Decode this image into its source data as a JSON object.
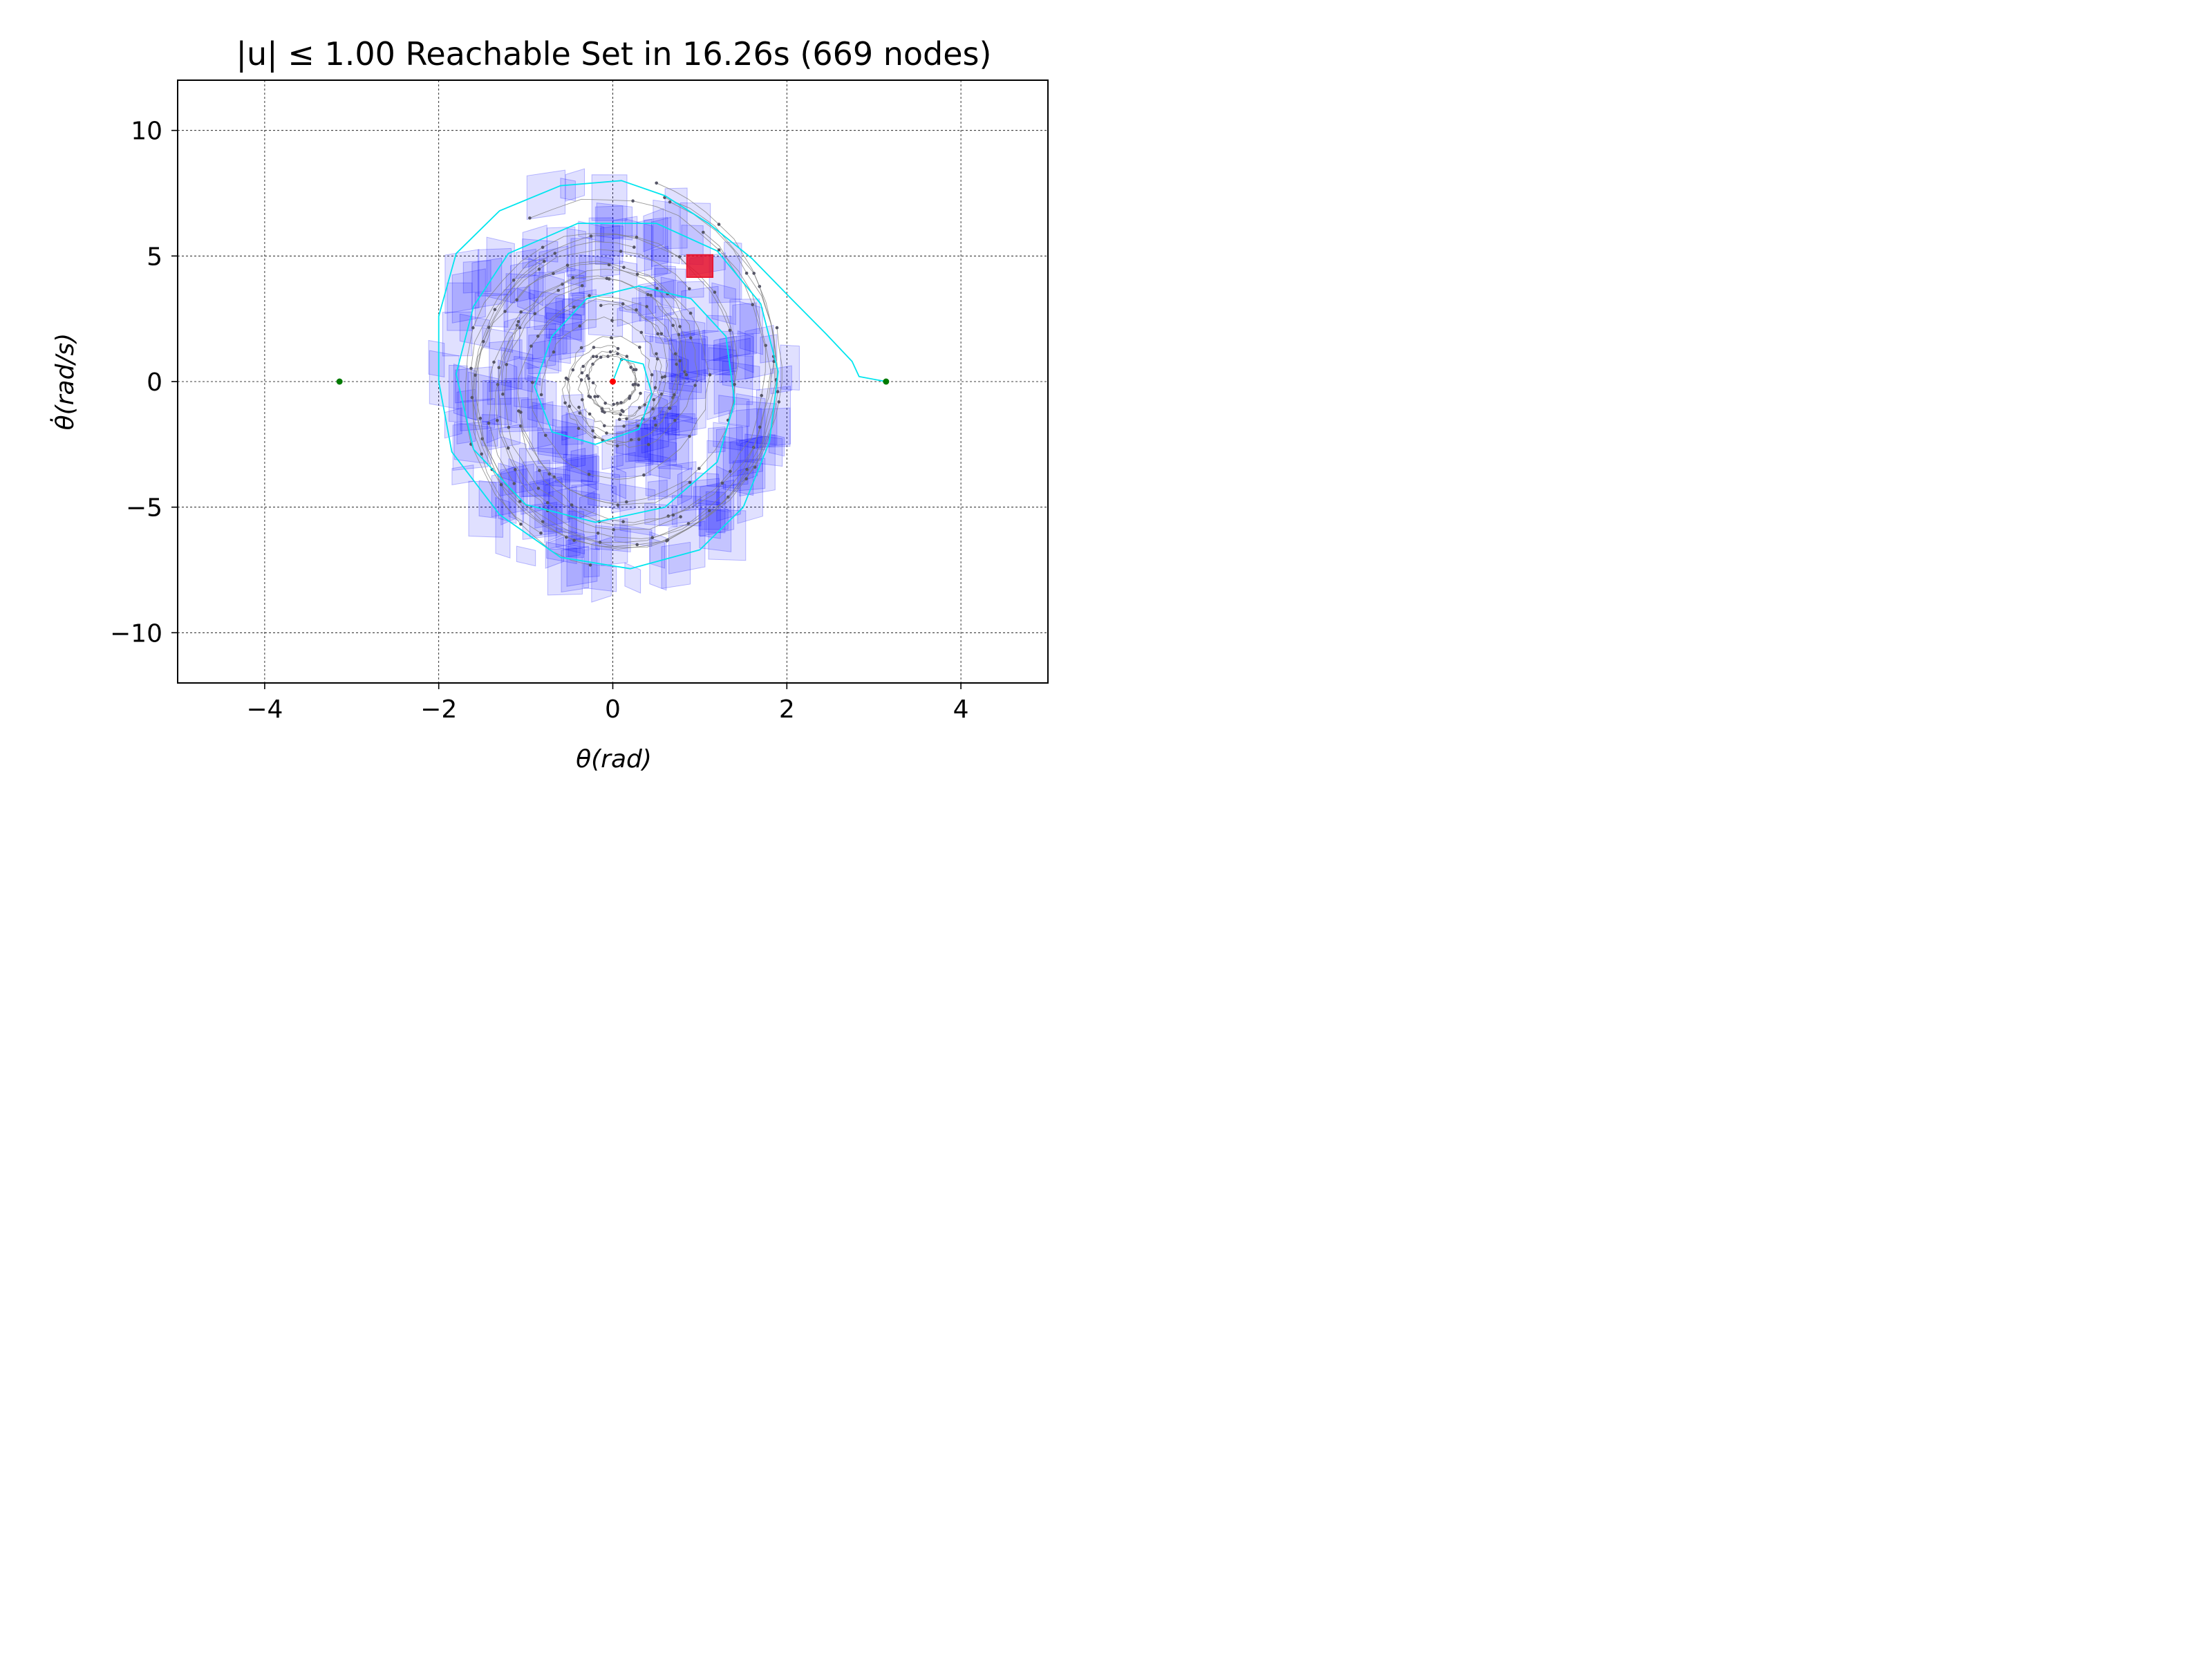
{
  "chart_data": {
    "type": "scatter",
    "title": "|u| ≤ 1.00 Reachable Set in 16.26s (669 nodes)",
    "xlabel": "θ(rad)",
    "ylabel": "θ̇(rad/s)",
    "xlim": [
      -5,
      5
    ],
    "ylim": [
      -12,
      12
    ],
    "xticks": [
      -4,
      -2,
      0,
      2,
      4
    ],
    "xtick_labels": [
      "−4",
      "−2",
      "0",
      "2",
      "4"
    ],
    "yticks": [
      -10,
      -5,
      0,
      5,
      10
    ],
    "ytick_labels": [
      "−10",
      "−5",
      "0",
      "5",
      "10"
    ],
    "grid": true,
    "colors": {
      "reachable_set": "#0000ff",
      "tree_edges": "#808080",
      "tree_nodes": "#555566",
      "solution_path": "#00e5ee",
      "goal_region": "#e8102a",
      "start_point": "#ff0000",
      "goal_points": "#007a00"
    },
    "start_point": {
      "x": 0.0,
      "y": 0.0
    },
    "goal_points": [
      {
        "x": -3.14,
        "y": 0.0
      },
      {
        "x": 3.14,
        "y": 0.0
      }
    ],
    "goal_region": {
      "x_range": [
        0.85,
        1.15
      ],
      "y_range": [
        4.15,
        5.05
      ]
    },
    "solution_path": [
      [
        3.14,
        0.0
      ],
      [
        2.83,
        0.2
      ],
      [
        2.75,
        0.8
      ],
      [
        2.45,
        1.9
      ],
      [
        2.05,
        3.3
      ],
      [
        1.6,
        4.9
      ],
      [
        1.1,
        6.3
      ],
      [
        0.6,
        7.4
      ],
      [
        0.1,
        8.0
      ],
      [
        -0.6,
        7.8
      ],
      [
        -1.3,
        6.8
      ],
      [
        -1.8,
        5.1
      ],
      [
        -2.0,
        2.6
      ],
      [
        -2.0,
        0.0
      ],
      [
        -1.85,
        -2.8
      ],
      [
        -1.3,
        -5.3
      ],
      [
        -0.6,
        -7.0
      ],
      [
        0.2,
        -7.45
      ],
      [
        1.0,
        -6.7
      ],
      [
        1.5,
        -5.0
      ],
      [
        1.8,
        -2.4
      ],
      [
        1.9,
        0.4
      ],
      [
        1.7,
        3.1
      ],
      [
        1.2,
        5.2
      ],
      [
        0.5,
        6.3
      ],
      [
        -0.4,
        6.3
      ],
      [
        -1.2,
        5.1
      ],
      [
        -1.6,
        3.0
      ],
      [
        -1.8,
        0.3
      ],
      [
        -1.6,
        -2.7
      ],
      [
        -1.0,
        -4.9
      ],
      [
        -0.2,
        -5.6
      ],
      [
        0.6,
        -5.0
      ],
      [
        1.2,
        -3.2
      ],
      [
        1.4,
        -0.8
      ],
      [
        1.3,
        1.8
      ],
      [
        0.9,
        3.3
      ],
      [
        0.3,
        3.8
      ],
      [
        -0.3,
        3.3
      ],
      [
        -0.7,
        1.8
      ],
      [
        -0.9,
        -0.2
      ],
      [
        -0.7,
        -2.0
      ],
      [
        -0.2,
        -2.5
      ],
      [
        0.3,
        -1.9
      ],
      [
        0.45,
        -0.5
      ],
      [
        0.35,
        0.7
      ],
      [
        0.1,
        0.9
      ],
      [
        0.0,
        0.0
      ]
    ]
  }
}
